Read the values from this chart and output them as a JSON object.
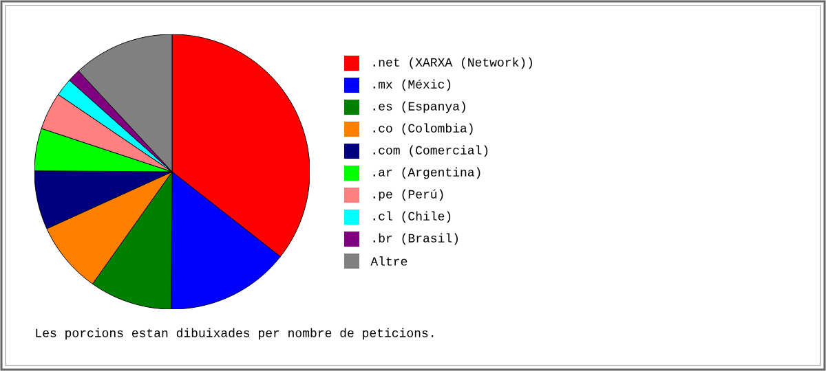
{
  "chart_data": {
    "type": "pie",
    "categories": [
      ".net (XARXA (Network))",
      ".mx (Méxic)",
      ".es (Espanya)",
      ".co (Colombia)",
      ".com (Comercial)",
      ".ar (Argentina)",
      ".pe (Perú)",
      ".cl (Chile)",
      ".br (Brasil)",
      "Altre"
    ],
    "values": [
      35.6,
      14.5,
      9.7,
      8.4,
      6.9,
      5.0,
      4.4,
      2.1,
      1.5,
      11.9
    ],
    "colors": [
      "#ff0000",
      "#0000ff",
      "#008000",
      "#ff8000",
      "#000080",
      "#00ff00",
      "#ff8080",
      "#00ffff",
      "#800080",
      "#808080"
    ],
    "legend": "right",
    "annotations": [
      "Les porcions estan dibuixades per nombre de peticions."
    ]
  }
}
